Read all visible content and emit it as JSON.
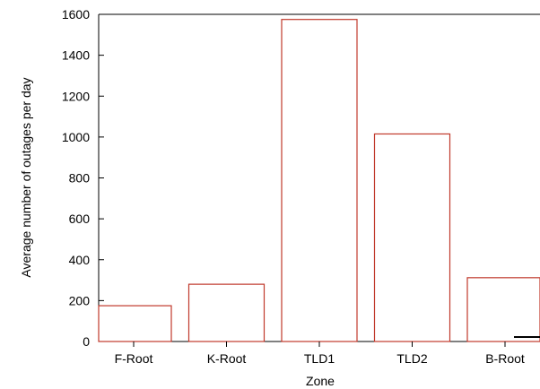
{
  "chart_data": {
    "type": "bar",
    "title": "",
    "xlabel": "Zone",
    "ylabel": "Average number of outages per day",
    "categories": [
      "F-Root",
      "K-Root",
      "TLD1",
      "TLD2",
      "B-Root"
    ],
    "values": [
      175,
      280,
      1575,
      1015,
      312
    ],
    "ylim": [
      0,
      1600
    ],
    "yticks": [
      0,
      200,
      400,
      600,
      800,
      1000,
      1200,
      1400,
      1600
    ],
    "grid": false,
    "legend": "none",
    "bar_color": "#c0392b",
    "extra_mark": {
      "x_category": "B-Root",
      "y": 22
    }
  }
}
